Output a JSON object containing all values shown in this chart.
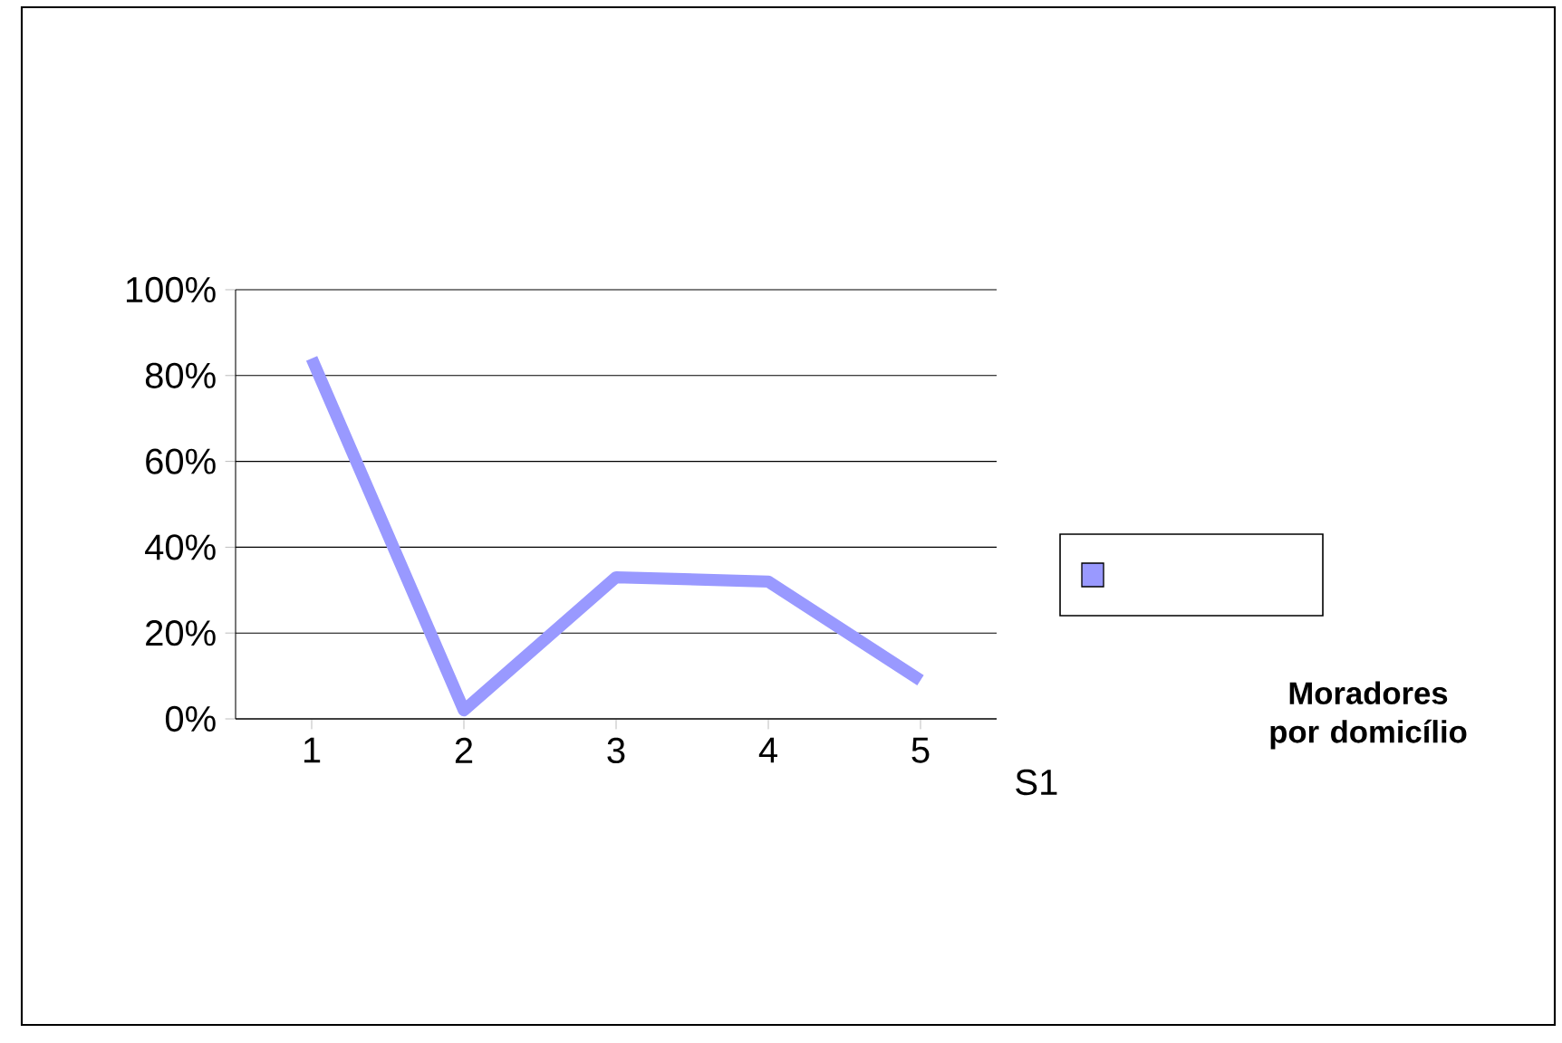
{
  "chart_data": {
    "type": "line",
    "title": "**Moradores por domicílio**",
    "categories": [
      "1",
      "2",
      "3",
      "4",
      "5"
    ],
    "series": [
      {
        "color": "#9999ff",
        "values": [
          84,
          2,
          33,
          32,
          9
        ]
      }
    ],
    "ylim": [
      0,
      100
    ],
    "yticks": [
      {
        "value": 0,
        "label": "0%"
      },
      {
        "value": 20,
        "label": "20%"
      },
      {
        "value": 40,
        "label": "40%"
      },
      {
        "value": 60,
        "label": "60%"
      },
      {
        "value": 80,
        "label": "80%"
      },
      {
        "value": 100,
        "label": "100%"
      }
    ],
    "grid": "y",
    "marker": "none",
    "line_style": "solid",
    "annotations": [
      "S1"
    ]
  }
}
